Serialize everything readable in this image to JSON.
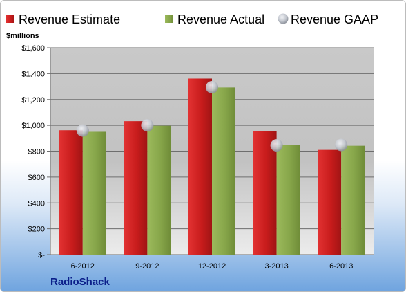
{
  "chart_data": {
    "type": "bar",
    "unit_label": "$millions",
    "categories": [
      "6-2012",
      "9-2012",
      "12-2012",
      "3-2013",
      "6-2013"
    ],
    "series": [
      {
        "name": "Revenue Estimate",
        "kind": "bar",
        "color": "#cc1f1f",
        "values": [
          962,
          1032,
          1362,
          953,
          810
        ]
      },
      {
        "name": "Revenue Actual",
        "kind": "bar",
        "color": "#8cab4d",
        "values": [
          950,
          997,
          1293,
          847,
          842
        ]
      },
      {
        "name": "Revenue GAAP",
        "kind": "marker",
        "color": "#c8ccd4",
        "values": [
          960,
          1000,
          1295,
          845,
          848
        ]
      }
    ],
    "ylim": [
      0,
      1600
    ],
    "yticks": [
      0,
      200,
      400,
      600,
      800,
      1000,
      1200,
      1400,
      1600
    ],
    "ytick_labels": [
      "$-",
      "$200",
      "$400",
      "$600",
      "$800",
      "$1,000",
      "$1,200",
      "$1,400",
      "$1,600"
    ],
    "grid": true,
    "legend_position": "top"
  },
  "brand": "RadioShack"
}
